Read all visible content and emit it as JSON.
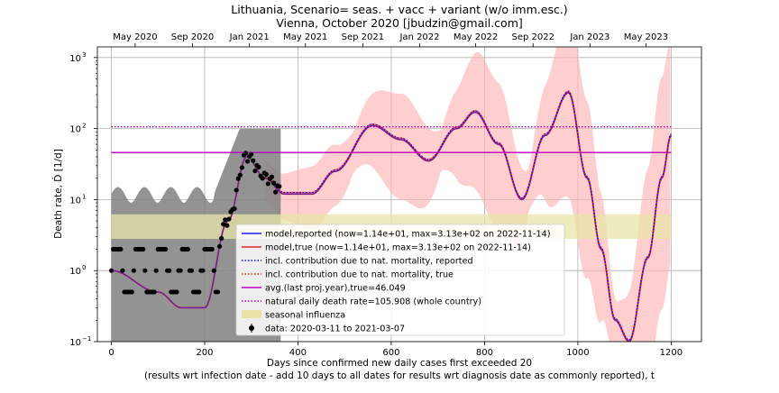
{
  "chart_data": {
    "type": "line",
    "title": "Lithuania, Scenario= seas. + vacc + variant (w/o imm.esc.)",
    "subtitle": "Vienna, October 2020 [jbudzin@gmail.com]",
    "xlabel": "Days since confirmed new daily cases first exceeded 20",
    "xlabel2": "(results wrt infection date - add 10 days to all dates for results wrt diagnosis date as commonly reported), t",
    "ylabel": "Death rate, Ḋ [1/d]",
    "xlim": [
      -30,
      1265
    ],
    "ylog10_range": [
      -1,
      3.15
    ],
    "x_ticks": [
      0,
      200,
      400,
      600,
      800,
      1000,
      1200
    ],
    "x_tick_labels": [
      "0",
      "200",
      "400",
      "600",
      "800",
      "1000",
      "1200"
    ],
    "y_ticks": [
      -1,
      0,
      1,
      2,
      3
    ],
    "y_tick_labels": [
      "10",
      "10",
      "10",
      "10",
      "10"
    ],
    "y_tick_exps": [
      "−1",
      "0",
      "1",
      "2",
      "3"
    ],
    "top_axis": {
      "days": [
        51,
        174,
        296,
        416,
        539,
        661,
        781,
        904,
        1026,
        1146
      ],
      "labels": [
        "May 2020",
        "Sep 2020",
        "Jan 2021",
        "May 2021",
        "Sep 2021",
        "Jan 2022",
        "May 2022",
        "Sep 2022",
        "Jan 2023",
        "May 2023"
      ]
    },
    "colors": {
      "reported": "#1f1fff",
      "true": "#d62728",
      "nat_reported": "#0000ff",
      "nat_true": "#ff2a00",
      "avg": "#c000c0",
      "natural": "#b000b0",
      "seasonal": "#e8e4a8",
      "band": "#ffb3b3",
      "data": "#000000",
      "data_band": "#808080"
    },
    "lines": {
      "avg_last_proj_year": 46.049,
      "natural_daily_death_rate": 105.908,
      "seasonal_influenza_range": [
        2.8,
        6.2
      ]
    },
    "model_peaks": {
      "days": [
        0,
        100,
        150,
        200,
        250,
        290,
        330,
        370,
        430,
        480,
        560,
        620,
        680,
        740,
        780,
        830,
        880,
        930,
        980,
        1020,
        1050,
        1080,
        1110,
        1150,
        1180,
        1200
      ],
      "values": [
        1.0,
        0.5,
        0.3,
        0.3,
        5.0,
        40,
        20,
        12,
        12,
        25,
        110,
        70,
        35,
        100,
        170,
        60,
        10,
        80,
        320,
        20,
        2.0,
        0.2,
        0.1,
        1.5,
        20,
        80
      ]
    },
    "legend": [
      {
        "label": "model,reported (now=1.14e+01, max=3.13e+02 on 2022-11-14)",
        "style": "solid",
        "color": "#1f1fff"
      },
      {
        "label": "model,true (now=1.14e+01, max=3.13e+02 on 2022-11-14)",
        "style": "solid",
        "color": "#d62728"
      },
      {
        "label": "incl. contribution due to nat. mortality, reported",
        "style": "dotted",
        "color": "#0000ff"
      },
      {
        "label": "incl. contribution due to nat. mortality, true",
        "style": "dotted",
        "color": "#ff2a00"
      },
      {
        "label": "avg.(last proj.year),true=46.049",
        "style": "solid",
        "color": "#c000c0"
      },
      {
        "label": "natural daily death rate=105.908 (whole country)",
        "style": "dotted",
        "color": "#b000b0"
      },
      {
        "label": "seasonal influenza",
        "style": "patch",
        "color": "#e8e4a8"
      },
      {
        "label": "data: 2020-03-11 to 2021-03-07",
        "style": "marker",
        "color": "#000000"
      }
    ]
  }
}
